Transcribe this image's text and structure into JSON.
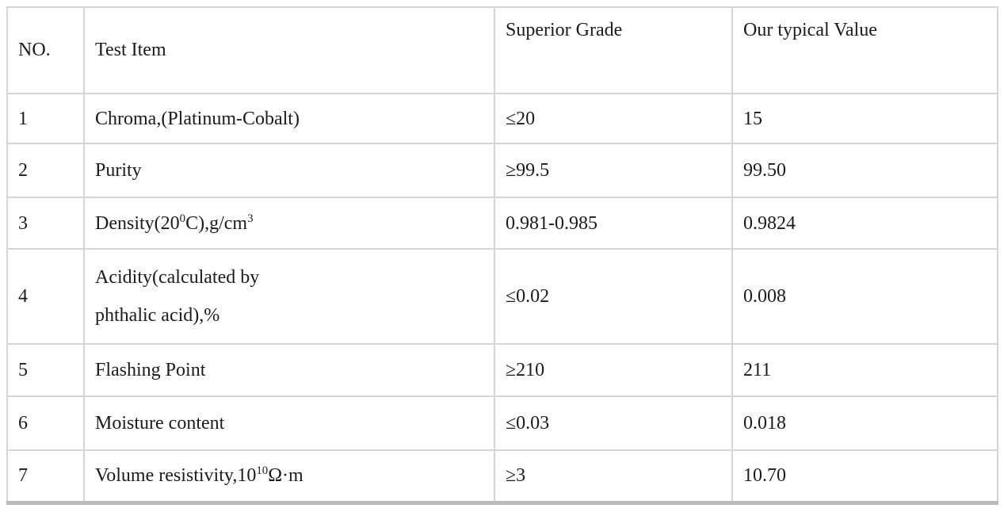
{
  "table": {
    "headers": [
      "NO.",
      "Test Item",
      "Superior Grade",
      "Our typical Value"
    ],
    "rows": [
      [
        "1",
        "Chroma,(Platinum-Cobalt)",
        "≤20",
        "15"
      ],
      [
        "2",
        "Purity",
        "≥99.5",
        "99.50"
      ],
      [
        "3",
        "Density(20^{0}C),g/cm^{3}",
        "0.981-0.985",
        "0.9824"
      ],
      [
        "4",
        "Acidity(calculated by\nphthalic acid),%",
        "≤0.02",
        "0.008"
      ],
      [
        "5",
        "Flashing Point",
        "≥210",
        "211"
      ],
      [
        "6",
        "Moisture content",
        "≤0.03",
        "0.018"
      ],
      [
        "7",
        "Volume resistivity,10^{10}Ω·m",
        "≥3",
        "10.70"
      ]
    ],
    "grid_color": "#d5d5d5",
    "frame_color": "#c6c6c6",
    "bottom_edge_color": "#b9b9b9",
    "text_color": "#1b1b1b"
  }
}
